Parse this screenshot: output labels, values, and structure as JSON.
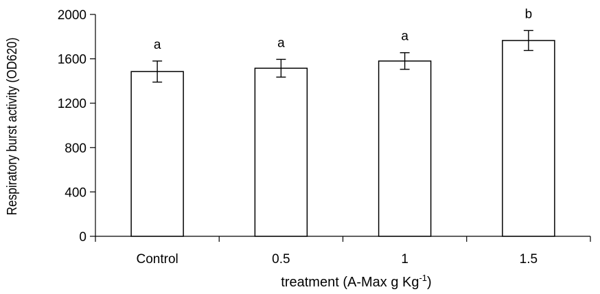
{
  "chart_data": {
    "type": "bar",
    "categories": [
      "Control",
      "0.5",
      "1",
      "1.5"
    ],
    "values": [
      1485,
      1515,
      1580,
      1765
    ],
    "errors": [
      95,
      80,
      75,
      90
    ],
    "significance": [
      "a",
      "a",
      "a",
      "b"
    ],
    "xlabel": {
      "main": "treatment (A-Max g Kg",
      "superscript": "-1",
      "close": ")"
    },
    "ylabel": "Respiratory burst activity (OD620)",
    "ylim": [
      0,
      2000
    ],
    "yticks": [
      "0",
      "400",
      "800",
      "1200",
      "1600",
      "2000"
    ],
    "grid": false,
    "legend": "none",
    "colors": {
      "bar_fill": "#ffffff",
      "bar_stroke": "#000000",
      "axis": "#000000"
    }
  }
}
